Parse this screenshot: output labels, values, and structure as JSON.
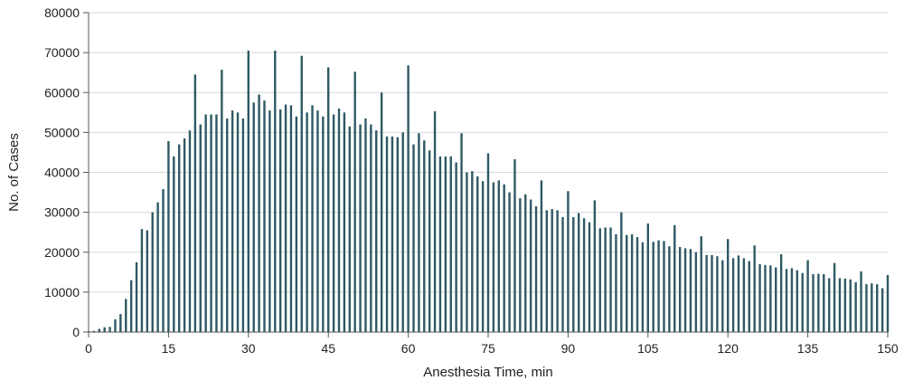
{
  "chart_data": {
    "type": "bar",
    "title": "",
    "xlabel": "Anesthesia Time, min",
    "ylabel": "No. of Cases",
    "xlim": [
      0,
      150
    ],
    "ylim": [
      0,
      80000
    ],
    "x_ticks": [
      0,
      15,
      30,
      45,
      60,
      75,
      90,
      105,
      120,
      135,
      150
    ],
    "y_ticks": [
      0,
      10000,
      20000,
      30000,
      40000,
      50000,
      60000,
      70000,
      80000
    ],
    "x_tick_labels": [
      "0",
      "15",
      "30",
      "45",
      "60",
      "75",
      "90",
      "105",
      "120",
      "135",
      "150"
    ],
    "y_tick_labels": [
      "0",
      "10000",
      "20000",
      "30000",
      "40000",
      "50000",
      "60000",
      "70000",
      "80000"
    ],
    "grid": "horizontal",
    "legend": "none",
    "bar_color": "#2e5a63",
    "x": [
      0,
      1,
      2,
      3,
      4,
      5,
      6,
      7,
      8,
      9,
      10,
      11,
      12,
      13,
      14,
      15,
      16,
      17,
      18,
      19,
      20,
      21,
      22,
      23,
      24,
      25,
      26,
      27,
      28,
      29,
      30,
      31,
      32,
      33,
      34,
      35,
      36,
      37,
      38,
      39,
      40,
      41,
      42,
      43,
      44,
      45,
      46,
      47,
      48,
      49,
      50,
      51,
      52,
      53,
      54,
      55,
      56,
      57,
      58,
      59,
      60,
      61,
      62,
      63,
      64,
      65,
      66,
      67,
      68,
      69,
      70,
      71,
      72,
      73,
      74,
      75,
      76,
      77,
      78,
      79,
      80,
      81,
      82,
      83,
      84,
      85,
      86,
      87,
      88,
      89,
      90,
      91,
      92,
      93,
      94,
      95,
      96,
      97,
      98,
      99,
      100,
      101,
      102,
      103,
      104,
      105,
      106,
      107,
      108,
      109,
      110,
      111,
      112,
      113,
      114,
      115,
      116,
      117,
      118,
      119,
      120,
      121,
      122,
      123,
      124,
      125,
      126,
      127,
      128,
      129,
      130,
      131,
      132,
      133,
      134,
      135,
      136,
      137,
      138,
      139,
      140,
      141,
      142,
      143,
      144,
      145,
      146,
      147,
      148,
      149,
      150
    ],
    "values": [
      200,
      300,
      800,
      1200,
      1300,
      3200,
      4500,
      8300,
      13000,
      17500,
      25800,
      25500,
      30000,
      32500,
      35800,
      47800,
      44000,
      47000,
      48500,
      50500,
      64500,
      52000,
      54500,
      54500,
      54500,
      65700,
      53500,
      55500,
      55000,
      53500,
      70500,
      57500,
      59500,
      58000,
      55500,
      70500,
      55800,
      57000,
      56800,
      54000,
      69200,
      55000,
      56800,
      55500,
      54000,
      66300,
      54500,
      56000,
      55000,
      51500,
      65200,
      52000,
      53500,
      52000,
      50500,
      60000,
      49000,
      49000,
      48800,
      50000,
      66800,
      47000,
      49800,
      48000,
      45500,
      55300,
      44000,
      44000,
      44000,
      42500,
      49800,
      40000,
      40300,
      39000,
      37800,
      44800,
      37500,
      38000,
      37000,
      35000,
      43300,
      33500,
      34500,
      33200,
      31500,
      38000,
      30500,
      30800,
      30500,
      28800,
      35300,
      28800,
      29800,
      28500,
      27500,
      33000,
      26000,
      26200,
      26200,
      24500,
      30000,
      24300,
      24500,
      23800,
      22500,
      27200,
      22600,
      23000,
      22800,
      21500,
      26800,
      21300,
      21000,
      20800,
      20000,
      24000,
      19300,
      19300,
      19000,
      18000,
      23300,
      18500,
      19200,
      18500,
      17800,
      21700,
      17000,
      16800,
      16700,
      16200,
      19500,
      15800,
      16000,
      15500,
      14800,
      18000,
      14500,
      14600,
      14500,
      13500,
      17300,
      13500,
      13400,
      13200,
      12500,
      15200,
      12000,
      12200,
      12000,
      11000,
      14300
    ]
  }
}
